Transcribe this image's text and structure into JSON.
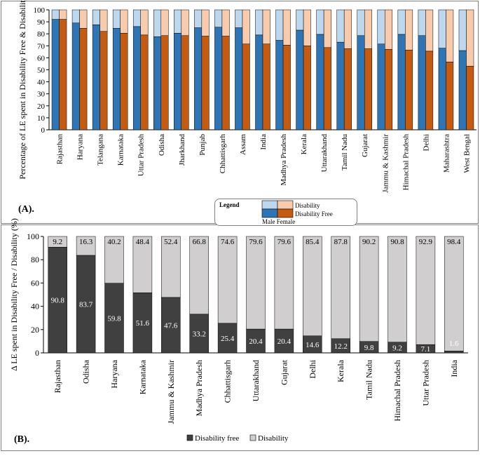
{
  "colors": {
    "male_df": "#2e75b6",
    "male_dis": "#bdd7ee",
    "female_df": "#c55a11",
    "female_dis": "#f8cbad",
    "b_df": "#404040",
    "b_dis": "#d0cece",
    "frame": "#808080"
  },
  "chart_data": [
    {
      "panel": "A",
      "type": "bar",
      "panel_label": "(A).",
      "ylabel": "Percentage of LE spent in Disability Free & Disability",
      "ylim": [
        0,
        100
      ],
      "yticks": [
        0,
        10,
        20,
        30,
        40,
        50,
        60,
        70,
        80,
        90,
        100
      ],
      "categories": [
        "Rajasthan",
        "Haryana",
        "Telangana",
        "Karnataka",
        "Uttar Pradesh",
        "Odisha",
        "Jharkhand",
        "Punjab",
        "Chhattisgarh",
        "Assam",
        "India",
        "Madhya Pradesh",
        "Kerala",
        "Uttarakhand",
        "Tamil Nadu",
        "Gujarat",
        "Jammu & Kashmir",
        "Himachal Pradesh",
        "Delhi",
        "Maharashtra",
        "West Bengal"
      ],
      "series": [
        {
          "name": "Male Disability Free",
          "values": [
            92,
            89,
            87.5,
            84.5,
            86,
            77.5,
            80.5,
            85,
            85.5,
            85,
            79,
            74.5,
            83,
            79.5,
            73,
            78.5,
            71.5,
            79.5,
            78.5,
            68,
            66
          ]
        },
        {
          "name": "Female Disability Free",
          "values": [
            92,
            84.5,
            82,
            80.5,
            79,
            78.5,
            78.5,
            78,
            78,
            71.5,
            71.5,
            70.5,
            70,
            68.5,
            67.5,
            67.5,
            67,
            66.5,
            65.5,
            56.5,
            53
          ]
        }
      ],
      "legend": {
        "title": "Legend",
        "disability_label": "Disability",
        "disability_free_label": "Disability Free",
        "sub_label": "Male Female"
      }
    },
    {
      "panel": "B",
      "type": "bar",
      "panel_label": "(B).",
      "ylabel": "Δ LE spent in Disability Free / Disability (%)",
      "ylim": [
        0,
        100
      ],
      "yticks": [
        0,
        20,
        40,
        60,
        80,
        100
      ],
      "categories": [
        "Rajasthan",
        "Odisha",
        "Haryana",
        "Karnataka",
        "Jammu & Kashmir",
        "Madhya Pradesh",
        "Chhattisgarh",
        "Uttarakhand",
        "Gujarat",
        "Delhi",
        "Kerala",
        "Tamil Nadu",
        "Himachal Pradesh",
        "Uttar Pradesh",
        "India"
      ],
      "series": [
        {
          "name": "Disability free",
          "values": [
            90.8,
            83.7,
            59.8,
            51.6,
            47.6,
            33.2,
            25.4,
            20.4,
            20.4,
            14.6,
            12.2,
            9.8,
            9.2,
            7.1,
            1.6
          ]
        },
        {
          "name": "Disability",
          "values": [
            9.2,
            16.3,
            40.2,
            48.4,
            52.4,
            66.8,
            74.6,
            79.6,
            79.6,
            85.4,
            87.8,
            90.2,
            90.8,
            92.9,
            98.4
          ]
        }
      ],
      "df_label_text": [
        "90.8",
        "83.7",
        "59.8",
        "51.6",
        "47.6",
        "33.2",
        "25.4",
        "20.4",
        "20.4",
        "14.6",
        "12.2",
        "9.8",
        "9.2",
        "7.1",
        "1.6"
      ],
      "dis_label_text": [
        "9.2",
        "16.3",
        "40.2",
        "48.4",
        "52.4",
        "66.8",
        "74.6",
        "79.6",
        "79.6",
        "85.4",
        "87.8",
        "90.2",
        "90.8",
        "92.9",
        "98.4"
      ],
      "legend": {
        "df_label": "Disability free",
        "dis_label": "Disability"
      }
    }
  ]
}
